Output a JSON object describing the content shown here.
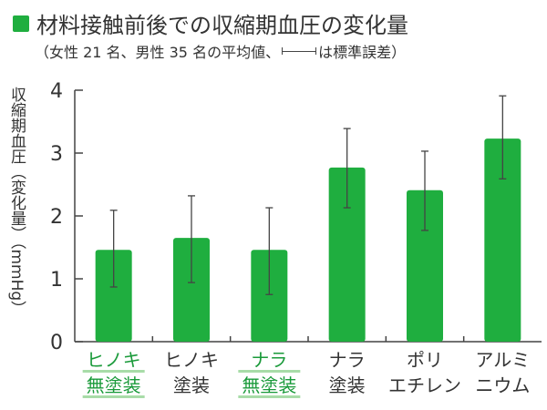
{
  "title": "材料接触前後での収縮期血圧の変化量",
  "subtitle_before": "（女性 21 名、男性 35 名の平均値、",
  "subtitle_after": "は標準誤差）",
  "colors": {
    "bar": "#1fae3f",
    "highlight_text": "#1a9a3a",
    "underline": "#a8dca8"
  },
  "chart_data": {
    "type": "bar",
    "title": "材料接触前後での収縮期血圧の変化量",
    "ylabel": "収縮期血圧（変化量）（mmHg）",
    "ylim": [
      0,
      4
    ],
    "yticks": [
      0,
      1,
      2,
      3,
      4
    ],
    "grid": false,
    "categories": [
      [
        "ヒノキ",
        "無塗装"
      ],
      [
        "ヒノキ",
        "塗装"
      ],
      [
        "ナラ",
        "無塗装"
      ],
      [
        "ナラ",
        "塗装"
      ],
      [
        "ポリ",
        "エチレン"
      ],
      [
        "アルミ",
        "ニウム"
      ]
    ],
    "highlighted": [
      true,
      false,
      true,
      false,
      false,
      false
    ],
    "values": [
      1.46,
      1.65,
      1.46,
      2.77,
      2.41,
      3.23
    ],
    "error_low": [
      0.87,
      0.94,
      0.75,
      2.13,
      1.77,
      2.59
    ],
    "error_high": [
      2.09,
      2.32,
      2.13,
      3.39,
      3.03,
      3.91
    ]
  }
}
